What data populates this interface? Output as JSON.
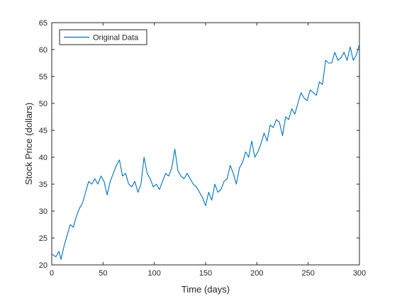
{
  "chart_data": {
    "type": "line",
    "xlabel": "Time (days)",
    "ylabel": "Stock Price (dollars)",
    "xlim": [
      0,
      300
    ],
    "ylim": [
      20,
      65
    ],
    "xticks": [
      "0",
      "50",
      "100",
      "150",
      "200",
      "250",
      "300"
    ],
    "yticks": [
      "20",
      "25",
      "30",
      "35",
      "40",
      "45",
      "50",
      "55",
      "60",
      "65"
    ],
    "grid": false,
    "legend_position": "top-left",
    "series": [
      {
        "name": "Original Data",
        "color": "#0072BD",
        "x": [
          0,
          4,
          7,
          9,
          12,
          15,
          18,
          21,
          24,
          27,
          30,
          33,
          36,
          39,
          42,
          45,
          48,
          51,
          54,
          57,
          60,
          63,
          66,
          69,
          72,
          75,
          78,
          81,
          84,
          87,
          90,
          93,
          96,
          99,
          102,
          105,
          108,
          111,
          114,
          117,
          120,
          123,
          126,
          129,
          132,
          135,
          138,
          141,
          144,
          147,
          150,
          153,
          156,
          159,
          162,
          165,
          168,
          171,
          174,
          177,
          180,
          183,
          186,
          189,
          192,
          195,
          198,
          201,
          204,
          207,
          210,
          213,
          216,
          219,
          222,
          225,
          228,
          231,
          234,
          237,
          240,
          243,
          246,
          249,
          252,
          255,
          258,
          261,
          264,
          267,
          270,
          273,
          276,
          279,
          282,
          285,
          288,
          291,
          294,
          297,
          300
        ],
        "y": [
          22,
          21.5,
          22.5,
          21,
          23.5,
          25.5,
          27.5,
          27,
          29,
          30.5,
          31.5,
          33.5,
          35.5,
          35,
          36,
          35,
          36.5,
          35.5,
          33,
          35.5,
          37,
          38.5,
          39.5,
          36.5,
          37,
          35,
          34.5,
          35.5,
          33.5,
          35,
          40,
          37,
          36,
          34.5,
          35,
          34,
          35.5,
          37,
          36.5,
          38,
          41.5,
          37.5,
          36.5,
          36,
          37,
          36,
          35,
          34.5,
          33.5,
          32.5,
          31,
          33.5,
          32,
          35,
          33.5,
          34,
          35.5,
          36,
          38.5,
          37,
          35,
          38,
          39,
          41,
          40,
          43,
          40,
          41,
          42.5,
          44.5,
          43,
          46,
          45.5,
          47,
          46.5,
          44,
          47.5,
          47,
          49,
          48,
          50,
          52,
          51,
          50.5,
          52.5,
          52,
          51.5,
          54,
          53.5,
          58,
          57.5,
          57.5,
          59.5,
          58,
          58.5,
          59.5,
          58,
          60.5,
          58,
          59,
          61
        ]
      }
    ]
  }
}
